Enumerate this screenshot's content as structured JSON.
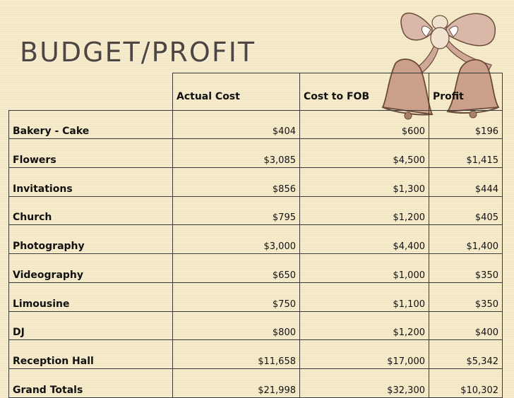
{
  "slide": {
    "title": "Budget/Profit"
  },
  "table": {
    "headers": [
      "",
      "Actual Cost",
      "Cost to FOB",
      "Profit"
    ],
    "rows": [
      {
        "label": "Bakery - Cake",
        "actual": "$404",
        "fob": "$600",
        "profit": "$196"
      },
      {
        "label": "Flowers",
        "actual": "$3,085",
        "fob": "$4,500",
        "profit": "$1,415"
      },
      {
        "label": "Invitations",
        "actual": "$856",
        "fob": "$1,300",
        "profit": "$444"
      },
      {
        "label": "Church",
        "actual": "$795",
        "fob": "$1,200",
        "profit": "$405"
      },
      {
        "label": "Photography",
        "actual": "$3,000",
        "fob": "$4,400",
        "profit": "$1,400"
      },
      {
        "label": "Videography",
        "actual": "$650",
        "fob": "$1,000",
        "profit": "$350"
      },
      {
        "label": "Limousine",
        "actual": "$750",
        "fob": "$1,100",
        "profit": "$350"
      },
      {
        "label": "DJ",
        "actual": "$800",
        "fob": "$1,200",
        "profit": "$400"
      },
      {
        "label": "Reception Hall",
        "actual": "$11,658",
        "fob": "$17,000",
        "profit": "$5,342"
      },
      {
        "label": "Grand Totals",
        "actual": "$21,998",
        "fob": "$32,300",
        "profit": "$10,302"
      }
    ]
  },
  "ornament": {
    "icon": "wedding-bells-cherub-icon",
    "bell_color": "#c9a48a",
    "ribbon_color": "#c8a898"
  }
}
